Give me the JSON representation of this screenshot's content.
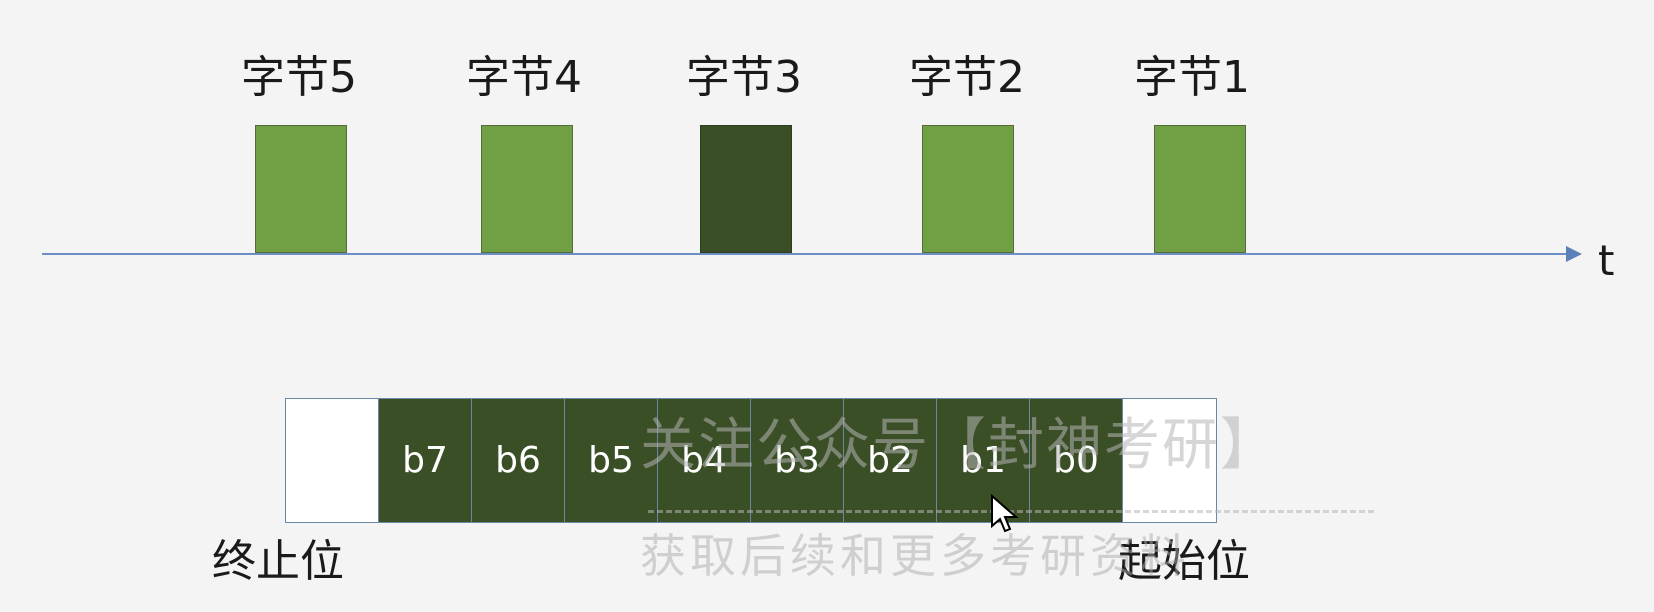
{
  "bytes": [
    {
      "label": "字节5",
      "active": false
    },
    {
      "label": "字节4",
      "active": false
    },
    {
      "label": "字节3",
      "active": true
    },
    {
      "label": "字节2",
      "active": false
    },
    {
      "label": "字节1",
      "active": false
    }
  ],
  "axis_label": "t",
  "frame": {
    "cells": [
      "",
      "b7",
      "b6",
      "b5",
      "b4",
      "b3",
      "b2",
      "b1",
      "b0",
      ""
    ],
    "stop_label": "终止位",
    "start_label": "起始位"
  },
  "watermark": {
    "line1": "关注公众号【封神考研】",
    "line2": "获取后续和更多考研资料"
  },
  "colors": {
    "byte_fill": "#70a043",
    "byte_active_fill": "#3a4f26",
    "axis": "#6b8fc4"
  }
}
